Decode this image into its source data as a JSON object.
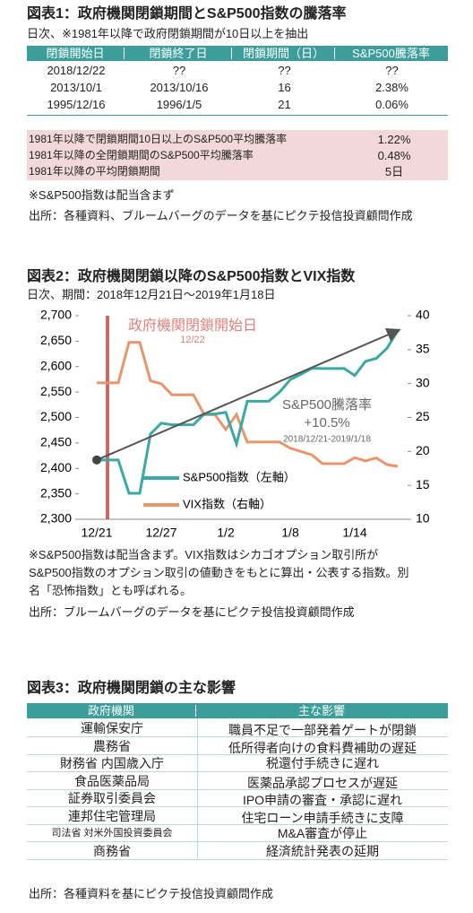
{
  "fig1": {
    "title": "図表1：政府機関閉鎖期間とS&P500指数の騰落率",
    "subtitle": "日次、※1981年以降で政府閉鎖期間が10日以上を抽出",
    "table": {
      "header": [
        "閉鎖開始日",
        "閉鎖終了日",
        "閉鎖期間（日）",
        "S&P500騰落率"
      ],
      "rows": [
        [
          "2018/12/22",
          "??",
          "??",
          "??"
        ],
        [
          "2013/10/1",
          "2013/10/16",
          "16",
          "2.38%"
        ],
        [
          "1995/12/16",
          "1996/1/5",
          "21",
          "0.06%"
        ]
      ]
    },
    "summary": [
      [
        "1981年以降で閉鎖期間10日以上のS&P500平均騰落率",
        "1.22%"
      ],
      [
        "1981年以降の全閉鎖期間のS&P500平均騰落率",
        "0.48%"
      ],
      [
        "1981年以降の平均閉鎖期間",
        "5日"
      ]
    ],
    "note": "※S&P500指数は配当含まず",
    "source": "出所：各種資料、ブルームバーグのデータを基にピクテ投信投資顧問作成"
  },
  "chart_data": {
    "type": "line",
    "title": "図表2：政府機関閉鎖以降のS&P500指数とVIX指数",
    "subtitle": "日次、期間：2018年12月21日～2019年1月18日",
    "categories": [
      "12/21",
      null,
      null,
      null,
      null,
      null,
      "12/27",
      null,
      null,
      null,
      null,
      null,
      "1/2",
      null,
      null,
      null,
      null,
      null,
      "1/8",
      null,
      null,
      null,
      null,
      null,
      "1/14",
      null,
      null,
      null,
      null
    ],
    "series": [
      {
        "name": "S&P500指数（左軸）",
        "color": "#3aa9a5",
        "values": [
          2416.62,
          2416.62,
          2416.62,
          2351.1,
          2351.1,
          2467.7,
          2488.83,
          2485.74,
          2485.74,
          2485.74,
          2506.85,
          2506.85,
          2510.03,
          2447.89,
          2531.94,
          2531.94,
          2531.94,
          2549.69,
          2574.41,
          2584.96,
          2596.64,
          2596.26,
          2596.26,
          2596.26,
          2582.61,
          2610.3,
          2616.1,
          2635.96,
          2670.71
        ]
      },
      {
        "name": "VIX指数（右軸）",
        "color": "#e8956b",
        "axis": "y2",
        "values": [
          30.11,
          30.11,
          30.11,
          36.07,
          36.07,
          30.41,
          29.96,
          28.34,
          28.34,
          28.34,
          25.42,
          25.42,
          23.22,
          25.45,
          21.38,
          21.38,
          21.38,
          21.4,
          20.47,
          19.98,
          19.5,
          18.19,
          18.19,
          18.19,
          19.07,
          18.6,
          19.04,
          18.06,
          17.8
        ]
      }
    ],
    "ylim": [
      2300,
      2700
    ],
    "yticks": [
      {
        "value": 2300,
        "label": "2,300"
      },
      {
        "value": 2350,
        "label": "2,350"
      },
      {
        "value": 2400,
        "label": "2,400"
      },
      {
        "value": 2450,
        "label": "2,450"
      },
      {
        "value": 2500,
        "label": "2,500"
      },
      {
        "value": 2550,
        "label": "2,550"
      },
      {
        "value": 2600,
        "label": "2,600"
      },
      {
        "value": 2650,
        "label": "2,650"
      },
      {
        "value": 2700,
        "label": "2,700"
      }
    ],
    "y2lim": [
      10,
      40
    ],
    "y2ticks": [
      10,
      15,
      20,
      25,
      30,
      35,
      40
    ],
    "legend": "lower center",
    "event": {
      "label": "政府機関閉鎖開始日",
      "date": "12/22",
      "color": "#c0504d"
    },
    "change": {
      "title": "S&P500騰落率",
      "value": "+10.5%",
      "period": "2018/12/21-2019/1/18"
    }
  },
  "fig2": {
    "notes": [
      "※S&P500指数は配当含まず。VIX指数はシカゴオプション取引所が",
      "S&P500指数のオプション取引の値動きをもとに算出・公表する指数。別",
      "名「恐怖指数」とも呼ばれる。"
    ],
    "source": "出所：ブルームバーグのデータを基にピクテ投信投資顧問作成"
  },
  "fig3": {
    "title": "図表3：政府機関閉鎖の主な影響",
    "header": [
      "政府機関",
      "主な影響"
    ],
    "rows": [
      [
        "運輸保安庁",
        "職員不足で一部発着ゲートが閉鎖"
      ],
      [
        "農務省",
        "低所得者向けの食料費補助の遅延"
      ],
      [
        "財務省 内国歳入庁",
        "税還付手続きに遅れ"
      ],
      [
        "食品医薬品局",
        "医薬品承認プロセスが遅延"
      ],
      [
        "証券取引委員会",
        "IPO申請の審査・承認に遅れ"
      ],
      [
        "連邦住宅管理局",
        "住宅ローン申請手続きに支障"
      ],
      [
        "司法省 対米外国投資委員会",
        "M&A審査が停止"
      ],
      [
        "商務省",
        "経済統計発表の延期"
      ]
    ],
    "source": "出所：各種資料を基にピクテ投信投資顧問作成"
  }
}
